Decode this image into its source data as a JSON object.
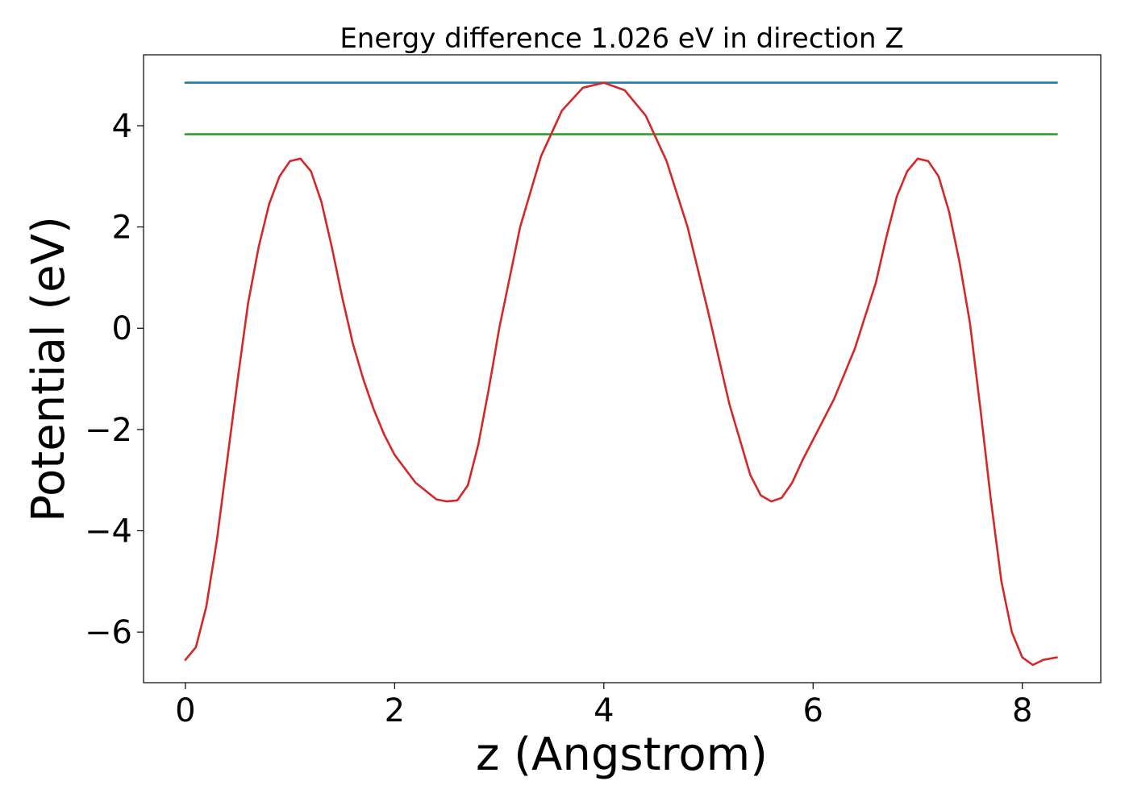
{
  "chart_data": {
    "type": "line",
    "title": "Energy difference 1.026 eV in direction Z",
    "xlabel": "z (Angstrom)",
    "ylabel": "Potential (eV)",
    "xlim": [
      -0.4,
      8.75
    ],
    "ylim": [
      -7.0,
      5.4
    ],
    "xticks": [
      0,
      2,
      4,
      6,
      8
    ],
    "yticks": [
      -6,
      -4,
      -2,
      0,
      2,
      4
    ],
    "ytick_labels": [
      "−6",
      "−4",
      "−2",
      "0",
      "2",
      "4"
    ],
    "grid": false,
    "series": [
      {
        "color": "#1f77b4",
        "x": [
          0.0,
          8.33
        ],
        "y": [
          4.85,
          4.85
        ]
      },
      {
        "color": "#2ca02c",
        "x": [
          0.0,
          8.33
        ],
        "y": [
          3.83,
          3.83
        ]
      },
      {
        "color": "#d62728",
        "x": [
          0.0,
          0.1,
          0.2,
          0.3,
          0.4,
          0.5,
          0.6,
          0.7,
          0.8,
          0.9,
          1.0,
          1.1,
          1.2,
          1.3,
          1.4,
          1.5,
          1.6,
          1.7,
          1.8,
          1.9,
          2.0,
          2.2,
          2.4,
          2.5,
          2.6,
          2.7,
          2.8,
          2.9,
          3.0,
          3.2,
          3.4,
          3.6,
          3.8,
          4.0,
          4.2,
          4.4,
          4.6,
          4.8,
          5.0,
          5.2,
          5.4,
          5.5,
          5.6,
          5.7,
          5.8,
          5.9,
          6.0,
          6.2,
          6.4,
          6.6,
          6.7,
          6.8,
          6.9,
          7.0,
          7.1,
          7.2,
          7.3,
          7.4,
          7.5,
          7.6,
          7.7,
          7.8,
          7.9,
          8.0,
          8.1,
          8.2,
          8.33
        ],
        "y": [
          -6.55,
          -6.3,
          -5.5,
          -4.2,
          -2.6,
          -1.0,
          0.5,
          1.6,
          2.45,
          3.0,
          3.3,
          3.35,
          3.1,
          2.5,
          1.6,
          0.6,
          -0.3,
          -1.0,
          -1.6,
          -2.1,
          -2.5,
          -3.05,
          -3.38,
          -3.42,
          -3.4,
          -3.1,
          -2.3,
          -1.2,
          0.0,
          2.0,
          3.4,
          4.3,
          4.75,
          4.85,
          4.7,
          4.2,
          3.3,
          2.0,
          0.3,
          -1.5,
          -2.9,
          -3.3,
          -3.42,
          -3.35,
          -3.05,
          -2.6,
          -2.2,
          -1.4,
          -0.4,
          0.9,
          1.8,
          2.6,
          3.1,
          3.35,
          3.3,
          3.0,
          2.3,
          1.3,
          0.1,
          -1.6,
          -3.4,
          -5.0,
          -6.0,
          -6.5,
          -6.65,
          -6.55,
          -6.5
        ]
      }
    ]
  }
}
